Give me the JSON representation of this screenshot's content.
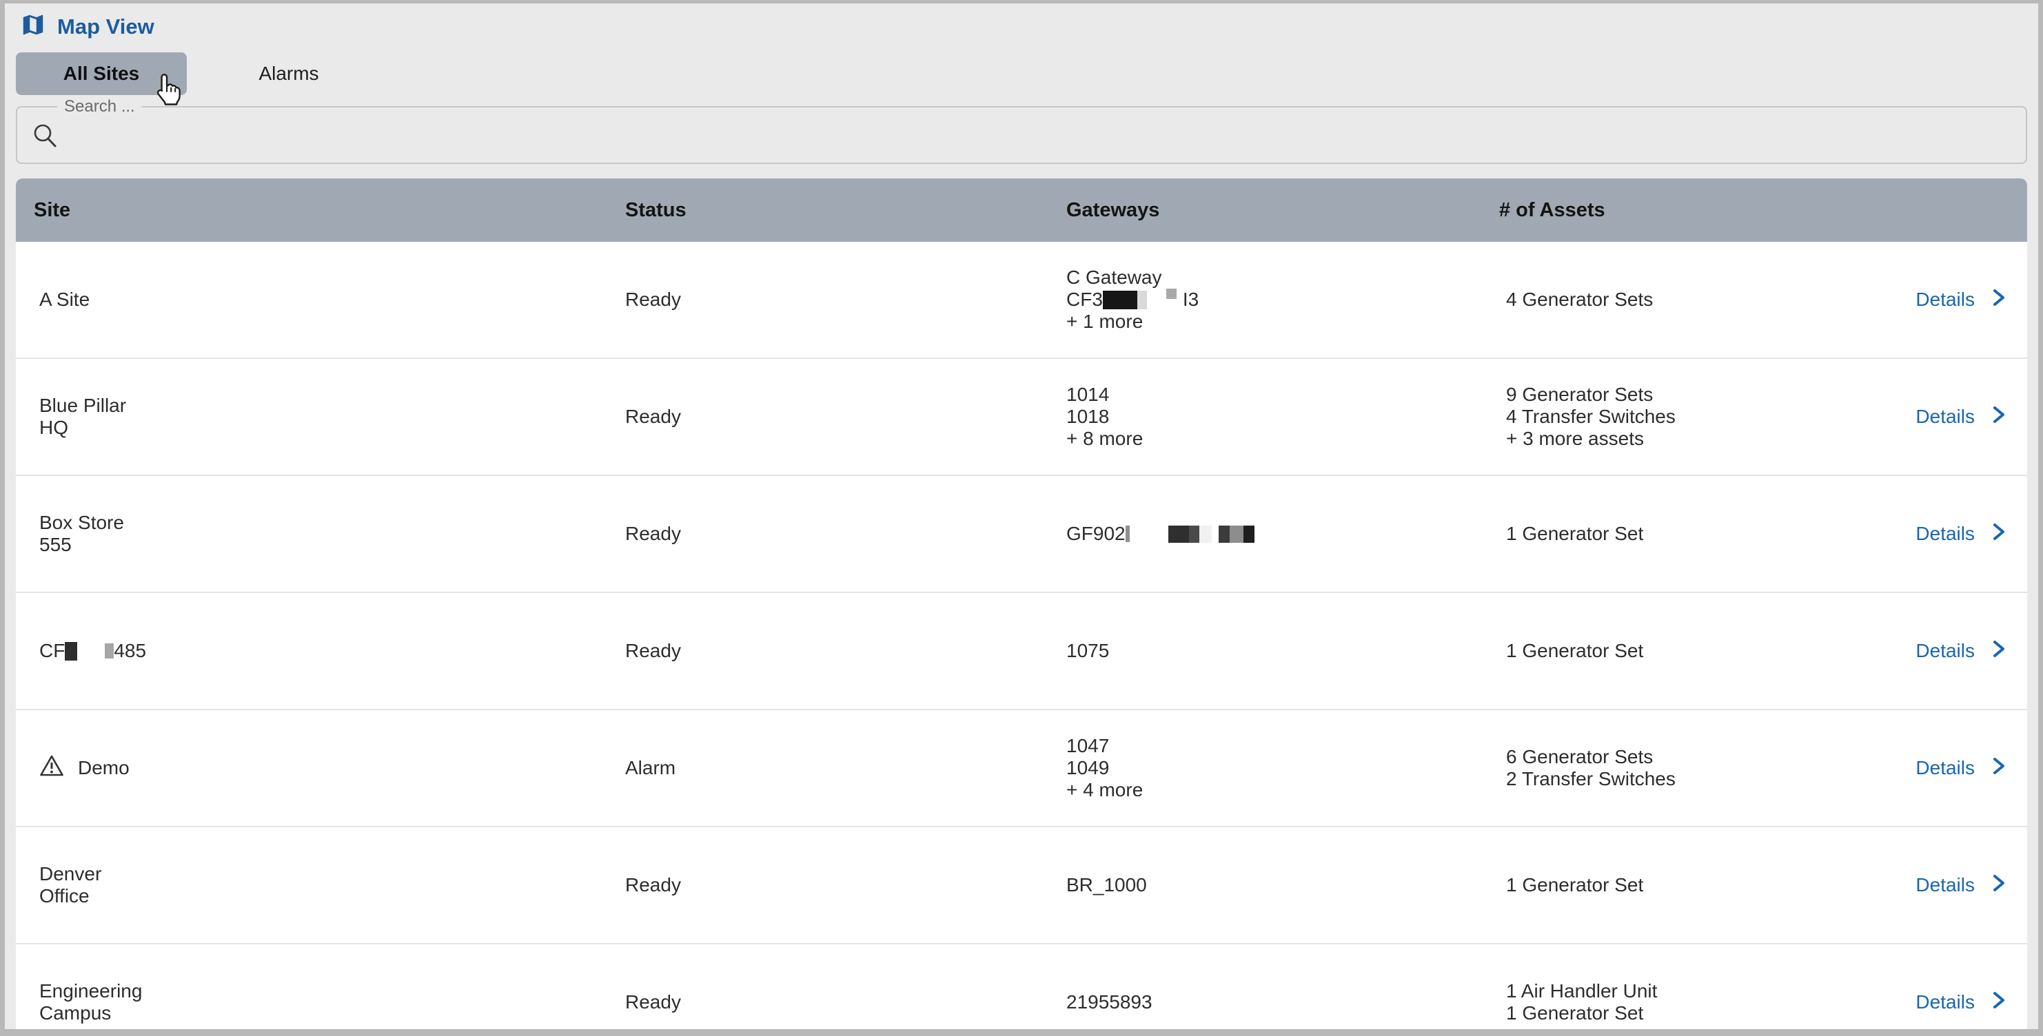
{
  "window": {
    "title": "Map View"
  },
  "tabs": [
    {
      "label": "All Sites",
      "selected": true
    },
    {
      "label": "Alarms",
      "selected": false
    }
  ],
  "search": {
    "label": "Search ...",
    "value": "",
    "icon": "search-icon"
  },
  "colors": {
    "accent_blue": "#1C5C9E",
    "link_blue": "#1866B0",
    "header_bg": "#A0A9B3",
    "tab_selected_bg": "#A0A9B3",
    "page_bg": "#EAEAEA",
    "frame_gray": "#B9B9B9",
    "row_text": "#2D2D2D"
  },
  "icons": {
    "app": "map-icon",
    "row_warning": "warning-triangle-icon",
    "details": "chevron-right-icon",
    "pointer": "hand-cursor"
  },
  "table": {
    "columns": [
      "Site",
      "Status",
      "Gateways",
      "# of Assets"
    ],
    "action_label": "Details",
    "rows": [
      {
        "site": {
          "icon": null,
          "lines": [
            [
              {
                "text": "A Site"
              }
            ]
          ]
        },
        "status": "Ready",
        "gateways": [
          [
            {
              "text": "C Gateway"
            }
          ],
          [
            {
              "text": "CF3"
            },
            {
              "redact": {
                "w": 50,
                "h": 27,
                "color": "#161616"
              }
            },
            {
              "redact": {
                "w": 14,
                "h": 27,
                "color": "#d9d9d9"
              }
            },
            {
              "gap": 28
            },
            {
              "redact": {
                "w": 15,
                "h": 15,
                "color": "#a9a9a9",
                "raise": 10
              }
            },
            {
              "gap": 9
            },
            {
              "text": "I3"
            }
          ],
          [
            {
              "text": "+ 1 more"
            }
          ]
        ],
        "assets": [
          [
            {
              "text": "4 Generator Sets"
            }
          ]
        ],
        "action": "Details"
      },
      {
        "site": {
          "icon": null,
          "lines": [
            [
              {
                "text": "Blue Pillar"
              }
            ],
            [
              {
                "text": "HQ"
              }
            ]
          ]
        },
        "status": "Ready",
        "gateways": [
          [
            {
              "text": "1014"
            }
          ],
          [
            {
              "text": "1018"
            }
          ],
          [
            {
              "text": "+ 8 more"
            }
          ]
        ],
        "assets": [
          [
            {
              "text": "9 Generator Sets"
            }
          ],
          [
            {
              "text": "4 Transfer Switches"
            }
          ],
          [
            {
              "text": "+ 3 more assets"
            }
          ]
        ],
        "action": "Details"
      },
      {
        "site": {
          "icon": null,
          "lines": [
            [
              {
                "text": "Box Store"
              }
            ],
            [
              {
                "text": "555"
              }
            ]
          ]
        },
        "status": "Ready",
        "gateways": [
          [
            {
              "text": "GF902"
            },
            {
              "redact": {
                "w": 6,
                "h": 24,
                "color": "#8f8f8f"
              }
            },
            {
              "gap": 56
            },
            {
              "redact": {
                "w": 30,
                "h": 25,
                "color": "#2f2f2f"
              }
            },
            {
              "redact": {
                "w": 15,
                "h": 25,
                "color": "#4a4a4a"
              }
            },
            {
              "redact": {
                "w": 18,
                "h": 25,
                "color": "#f1f1f1"
              }
            },
            {
              "gap": 10
            },
            {
              "redact": {
                "w": 16,
                "h": 25,
                "color": "#3b3b3b"
              }
            },
            {
              "redact": {
                "w": 20,
                "h": 25,
                "color": "#8d8d8d"
              }
            },
            {
              "redact": {
                "w": 16,
                "h": 25,
                "color": "#1f1f1f"
              }
            }
          ]
        ],
        "assets": [
          [
            {
              "text": "1 Generator Set"
            }
          ]
        ],
        "action": "Details"
      },
      {
        "site": {
          "icon": null,
          "lines": [
            [
              {
                "text": "CF"
              },
              {
                "redact": {
                  "w": 18,
                  "h": 27,
                  "color": "#2e2e2e"
                }
              },
              {
                "gap": 40
              },
              {
                "redact": {
                  "w": 13,
                  "h": 22,
                  "color": "#a6a6a6"
                }
              },
              {
                "text": "485"
              }
            ]
          ]
        },
        "status": "Ready",
        "gateways": [
          [
            {
              "text": "1075"
            }
          ]
        ],
        "assets": [
          [
            {
              "text": "1 Generator Set"
            }
          ]
        ],
        "action": "Details"
      },
      {
        "site": {
          "icon": "warning-triangle-icon",
          "lines": [
            [
              {
                "text": "Demo"
              }
            ]
          ]
        },
        "status": "Alarm",
        "gateways": [
          [
            {
              "text": "1047"
            }
          ],
          [
            {
              "text": "1049"
            }
          ],
          [
            {
              "text": "+ 4 more"
            }
          ]
        ],
        "assets": [
          [
            {
              "text": "6 Generator Sets"
            }
          ],
          [
            {
              "text": "2 Transfer Switches"
            }
          ]
        ],
        "action": "Details"
      },
      {
        "site": {
          "icon": null,
          "lines": [
            [
              {
                "text": "Denver"
              }
            ],
            [
              {
                "text": "Office"
              }
            ]
          ]
        },
        "status": "Ready",
        "gateways": [
          [
            {
              "text": "BR_1000"
            }
          ]
        ],
        "assets": [
          [
            {
              "text": "1 Generator Set"
            }
          ]
        ],
        "action": "Details"
      },
      {
        "site": {
          "icon": null,
          "lines": [
            [
              {
                "text": "Engineering"
              }
            ],
            [
              {
                "text": "Campus"
              }
            ]
          ]
        },
        "status": "Ready",
        "gateways": [
          [
            {
              "text": "21955893"
            }
          ]
        ],
        "assets": [
          [
            {
              "text": "1 Air Handler Unit"
            }
          ],
          [
            {
              "text": "1 Generator Set"
            }
          ]
        ],
        "action": "Details"
      }
    ]
  }
}
